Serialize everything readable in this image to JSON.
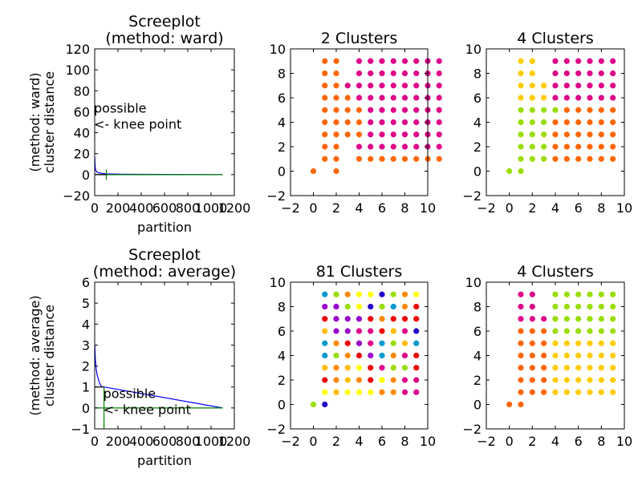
{
  "chart_data": [
    {
      "id": "scree-ward",
      "type": "line",
      "title_lines": [
        "Screeplot",
        "(method: ward)"
      ],
      "xlabel": "partition",
      "ylabel_lines": [
        "(method: ward)",
        "cluster distance"
      ],
      "xlim": [
        0,
        1200
      ],
      "ylim": [
        -20,
        120
      ],
      "xticks": [
        0,
        200,
        400,
        600,
        800,
        1000,
        1200
      ],
      "yticks": [
        -20,
        0,
        20,
        40,
        60,
        80,
        100,
        120
      ],
      "grid": false,
      "series": [
        {
          "color": "#0000ff",
          "x": [
            1,
            2,
            3,
            5,
            8,
            12,
            20,
            35,
            60,
            100,
            150,
            250,
            400,
            600,
            800,
            1000,
            1100
          ],
          "y": [
            17,
            12,
            9,
            6.5,
            5,
            3.5,
            2.5,
            1.8,
            1.2,
            0.8,
            0.6,
            0.4,
            0.3,
            0.2,
            0.1,
            0.05,
            0
          ]
        },
        {
          "color": "#008000",
          "x": [
            0,
            100,
            1100
          ],
          "y": [
            0,
            0,
            0
          ]
        },
        {
          "color": "#008000",
          "x": [
            100,
            100
          ],
          "y": [
            -5,
            5
          ]
        },
        {
          "color": "#000000",
          "x": [
            0,
            100
          ],
          "y": [
            0,
            0
          ]
        }
      ],
      "annotation": {
        "lines": [
          "possible",
          "<- knee point"
        ],
        "x": 0,
        "y": 70
      }
    },
    {
      "id": "scatter-2",
      "type": "scatter",
      "title": "2 Clusters",
      "xlim": [
        -2,
        10
      ],
      "ylim": [
        -2,
        10
      ],
      "xticks": [
        -2,
        0,
        2,
        4,
        6,
        8,
        10
      ],
      "yticks": [
        -2,
        0,
        2,
        4,
        6,
        8,
        10
      ],
      "colors": {
        "A": "#ff6600",
        "B": "#dd0088"
      },
      "rows": {
        "0": "A.A.........",
        "1": ".AA.AAAAAAAA",
        "2": ".AA.BBBBBBBB",
        "3": ".AAAABBBBBBB",
        "4": ".AAAABBBBBBB",
        "5": ".AAAABBBBBBB",
        "6": ".AAABBBBBBBB",
        "7": ".AABBBBBBBBB",
        "8": ".AA.BBBBBBBB",
        "9": ".AA.BBBBBBBB"
      }
    },
    {
      "id": "scatter-4-ward",
      "type": "scatter",
      "title": "4 Clusters",
      "xlim": [
        -2,
        10
      ],
      "ylim": [
        -2,
        10
      ],
      "xticks": [
        -2,
        0,
        2,
        4,
        6,
        8,
        10
      ],
      "yticks": [
        -2,
        0,
        2,
        4,
        6,
        8,
        10
      ],
      "colors": {
        "A": "#99dd00",
        "B": "#ffcc00",
        "C": "#ff6600",
        "D": "#dd0088"
      },
      "rows": {
        "0": "AA........",
        "1": ".AAACCCCCC",
        "2": ".AAACCCCCC",
        "3": ".AAACCCCCC",
        "4": ".AAACCCCCC",
        "5": ".AAAACCCCC",
        "6": ".BBBDDDDDD",
        "7": ".BBBDDDDDD",
        "8": ".BB.DDDDDD",
        "9": ".BB.DDDDDD"
      }
    },
    {
      "id": "scree-average",
      "type": "line",
      "title_lines": [
        "Screeplot",
        "(method: average)"
      ],
      "xlabel": "partition",
      "ylabel_lines": [
        "(method: average)",
        "cluster distance"
      ],
      "xlim": [
        0,
        1200
      ],
      "ylim": [
        -1,
        6
      ],
      "xticks": [
        0,
        200,
        400,
        600,
        800,
        1000,
        1200
      ],
      "yticks": [
        -1,
        0,
        1,
        2,
        3,
        4,
        5,
        6
      ],
      "grid": false,
      "series": [
        {
          "color": "#0000ff",
          "x": [
            1,
            5,
            10,
            20,
            40,
            60,
            80,
            1100
          ],
          "y": [
            3,
            2.4,
            2,
            1.6,
            1.2,
            1,
            1,
            0
          ]
        },
        {
          "color": "#008000",
          "x": [
            0,
            1100
          ],
          "y": [
            0,
            0
          ]
        },
        {
          "color": "#008000",
          "x": [
            80,
            80
          ],
          "y": [
            -1,
            1
          ]
        },
        {
          "color": "#000000",
          "x": [
            0,
            80
          ],
          "y": [
            1,
            1
          ]
        }
      ],
      "annotation": {
        "lines": [
          "possible",
          "<- knee point"
        ],
        "x": 80,
        "y": 1
      }
    },
    {
      "id": "scatter-81",
      "type": "scatter",
      "title": "81 Clusters",
      "xlim": [
        -2,
        10
      ],
      "ylim": [
        -2,
        10
      ],
      "xticks": [
        -2,
        0,
        2,
        4,
        6,
        8,
        10
      ],
      "yticks": [
        -2,
        0,
        2,
        4,
        6,
        8,
        10
      ],
      "colors": {
        "y": "#ffff00",
        "o": "#ff8800",
        "r": "#ee0000",
        "p": "#dd0088",
        "v": "#9900cc",
        "b": "#2200cc",
        "c": "#0099cc",
        "g": "#99dd00",
        "a": "#ffbb00"
      },
      "rows": {
        "0": "gb........",
        "1": ".yayyyoopp",
        "2": ".roaoryopp",
        "3": ".aoayrpggr",
        "4": ".cgorvcopr",
        "5": ".corvpcgac",
        "6": ".avvpprapb",
        "7": ".rvvvrorrr",
        "8": ".vvgybgcor",
        "9": ".cgoyybgoy"
      }
    },
    {
      "id": "scatter-4-average",
      "type": "scatter",
      "title": "4 Clusters",
      "xlim": [
        -2,
        10
      ],
      "ylim": [
        -2,
        10
      ],
      "xticks": [
        -2,
        0,
        2,
        4,
        6,
        8,
        10
      ],
      "yticks": [
        -2,
        0,
        2,
        4,
        6,
        8,
        10
      ],
      "colors": {
        "A": "#ff6600",
        "B": "#ffcc00",
        "C": "#99dd00",
        "D": "#dd0088"
      },
      "rows": {
        "0": "AA........",
        "1": ".AAABBBBBB",
        "2": ".AAABBBBBB",
        "3": ".AAABBBBBB",
        "4": ".AAABBBBBB",
        "5": ".AAABBBBBB",
        "6": ".AAACCCCCC",
        "7": ".DDDCCCCCC",
        "8": ".DD.CCCCCC",
        "9": ".DD.CCCCCC"
      }
    }
  ]
}
